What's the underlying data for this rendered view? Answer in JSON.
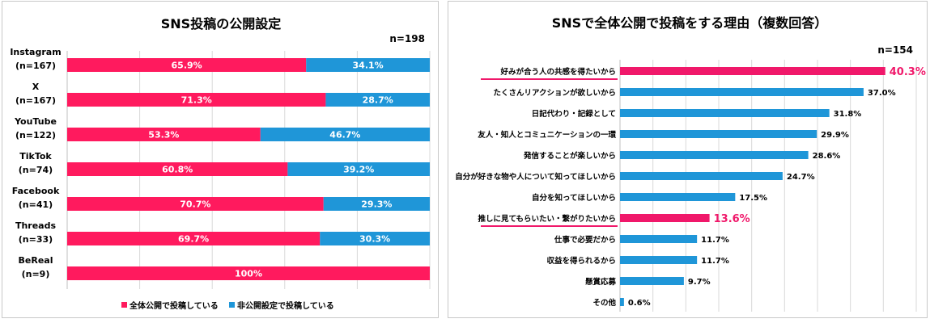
{
  "colors": {
    "public": "#ff1a5e",
    "private": "#1f96d8",
    "highlight": "#f0186a",
    "grid": "#d9d9d9"
  },
  "chart_data": [
    {
      "type": "bar",
      "orientation": "horizontal",
      "stacked": true,
      "title": "SNS投稿の公開設定",
      "n_label": "n=198",
      "categories": [
        {
          "name": "Instagram",
          "n": "(n=167)"
        },
        {
          "name": "X",
          "n": "(n=167)"
        },
        {
          "name": "YouTube",
          "n": "(n=122)"
        },
        {
          "name": "TikTok",
          "n": "(n=74)"
        },
        {
          "name": "Facebook",
          "n": "(n=41)"
        },
        {
          "name": "Threads",
          "n": "(n=33)"
        },
        {
          "name": "BeReal",
          "n": "(n=9)"
        }
      ],
      "series": [
        {
          "name": "全体公開で投稿している",
          "values": [
            65.9,
            71.3,
            53.3,
            60.8,
            70.7,
            69.7,
            100
          ],
          "labels": [
            "65.9%",
            "71.3%",
            "53.3%",
            "60.8%",
            "70.7%",
            "69.7%",
            "100%"
          ]
        },
        {
          "name": "非公開設定で投稿している",
          "values": [
            34.1,
            28.7,
            46.7,
            39.2,
            29.3,
            30.3,
            0
          ],
          "labels": [
            "34.1%",
            "28.7%",
            "46.7%",
            "39.2%",
            "29.3%",
            "30.3%",
            ""
          ]
        }
      ],
      "xlim": [
        0,
        100
      ],
      "legend": "bottom"
    },
    {
      "type": "bar",
      "orientation": "horizontal",
      "title": "SNSで全体公開で投稿をする理由（複数回答）",
      "n_label": "n=154",
      "categories": [
        "好みが合う人の共感を得たいから",
        "たくさんリアクションが欲しいから",
        "日記代わり・記録として",
        "友人・知人とコミュニケーションの一環",
        "発信することが楽しいから",
        "自分が好きな物や人について知ってほしいから",
        "自分を知ってほしいから",
        "推しに見てもらいたい・繋がりたいから",
        "仕事で必要だから",
        "収益を得られるから",
        "懸賞応募",
        "その他"
      ],
      "values": [
        40.3,
        37.0,
        31.8,
        29.9,
        28.6,
        24.7,
        17.5,
        13.6,
        11.7,
        11.7,
        9.7,
        0.6
      ],
      "labels": [
        "40.3%",
        "37.0%",
        "31.8%",
        "29.9%",
        "28.6%",
        "24.7%",
        "17.5%",
        "13.6%",
        "11.7%",
        "11.7%",
        "9.7%",
        "0.6%"
      ],
      "highlighted": [
        true,
        false,
        false,
        false,
        false,
        false,
        false,
        true,
        false,
        false,
        false,
        false
      ],
      "xlim": [
        0,
        45
      ]
    }
  ]
}
